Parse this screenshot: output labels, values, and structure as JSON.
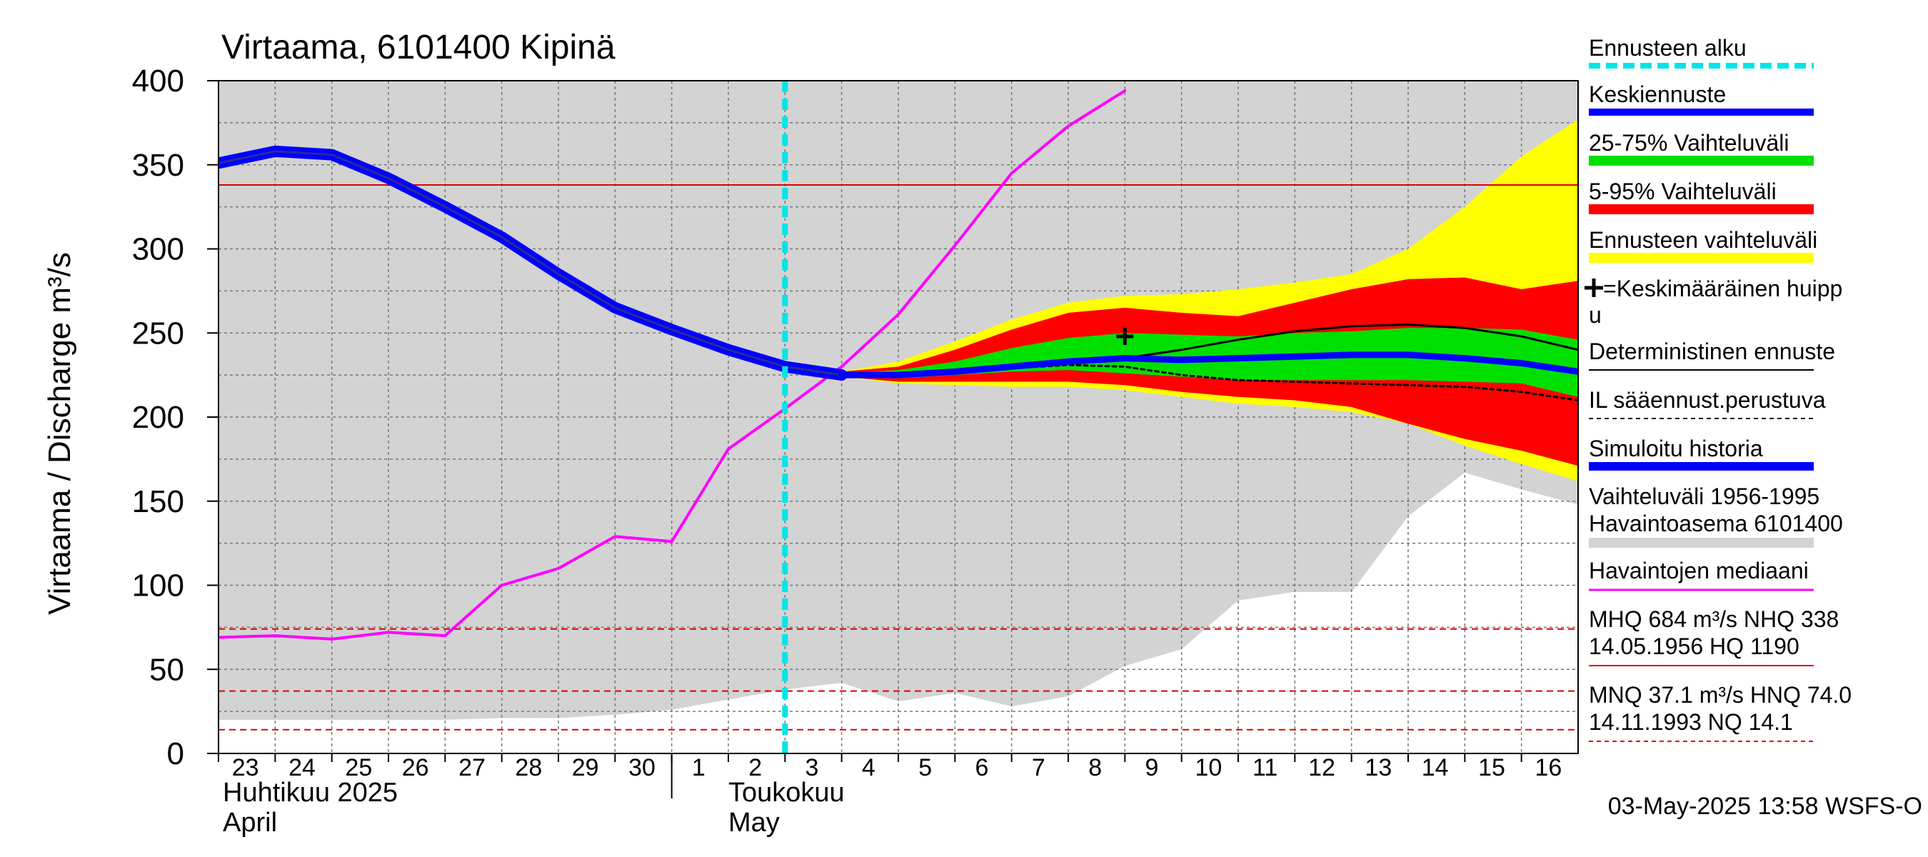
{
  "chart_data": {
    "type": "line",
    "title": "Virtaama, 6101400 Kipinä",
    "ylabel": "Virtaama / Discharge   m³/s",
    "ylim": [
      0,
      400
    ],
    "yticks": [
      0,
      50,
      100,
      150,
      200,
      250,
      300,
      350,
      400
    ],
    "x_start": "2025-04-23",
    "x_end": "2025-05-17",
    "x_tick_labels": [
      "23",
      "24",
      "25",
      "26",
      "27",
      "28",
      "29",
      "30",
      "1",
      "2",
      "3",
      "4",
      "5",
      "6",
      "7",
      "8",
      "9",
      "10",
      "11",
      "12",
      "13",
      "14",
      "15",
      "16"
    ],
    "month_labels": {
      "april_fi": "Huhtikuu  2025",
      "april_en": "April",
      "may_fi": "Toukokuu",
      "may_en": "May"
    },
    "forecast_start": "2025-05-03",
    "reference_lines": [
      {
        "label": "NHQ",
        "value": 338,
        "style": "solid",
        "color": "#e00000"
      },
      {
        "label": "HNQ",
        "value": 74.0,
        "style": "dashed",
        "color": "#e00000"
      },
      {
        "label": "MNQ",
        "value": 37.1,
        "style": "dashed",
        "color": "#e00000"
      },
      {
        "label": "NQ",
        "value": 14.1,
        "style": "dashed",
        "color": "#e00000"
      }
    ],
    "x": [
      "2025-04-23",
      "2025-04-24",
      "2025-04-25",
      "2025-04-26",
      "2025-04-27",
      "2025-04-28",
      "2025-04-29",
      "2025-04-30",
      "2025-05-01",
      "2025-05-02",
      "2025-05-03",
      "2025-05-04",
      "2025-05-05",
      "2025-05-06",
      "2025-05-07",
      "2025-05-08",
      "2025-05-09",
      "2025-05-10",
      "2025-05-11",
      "2025-05-12",
      "2025-05-13",
      "2025-05-14",
      "2025-05-15",
      "2025-05-16",
      "2025-05-17"
    ],
    "historical_range": {
      "upper": [
        400,
        400,
        400,
        400,
        400,
        400,
        400,
        400,
        400,
        400,
        400,
        400,
        400,
        400,
        400,
        400,
        400,
        400,
        400,
        400,
        400,
        400,
        400,
        400,
        400
      ],
      "lower": [
        20,
        20,
        20,
        20,
        20,
        21,
        21,
        23,
        26,
        32,
        38,
        42,
        31,
        36,
        28,
        34,
        52,
        62,
        91,
        96,
        96,
        141,
        167,
        157,
        148
      ]
    },
    "simulated_history": {
      "x": [
        "2025-04-23",
        "2025-04-24",
        "2025-04-25",
        "2025-04-26",
        "2025-04-27",
        "2025-04-28",
        "2025-04-29",
        "2025-04-30",
        "2025-05-01",
        "2025-05-02",
        "2025-05-03",
        "2025-05-04"
      ],
      "values": [
        351,
        358,
        356,
        342,
        325,
        307,
        285,
        265,
        252,
        240,
        230,
        225
      ]
    },
    "observed_median": {
      "x": [
        "2025-04-23",
        "2025-04-24",
        "2025-04-25",
        "2025-04-26",
        "2025-04-27",
        "2025-04-28",
        "2025-04-29",
        "2025-04-30",
        "2025-05-01",
        "2025-05-02",
        "2025-05-03",
        "2025-05-04",
        "2025-05-05",
        "2025-05-06",
        "2025-05-07",
        "2025-05-08",
        "2025-05-09"
      ],
      "values": [
        69,
        70,
        68,
        72,
        70,
        100,
        110,
        129,
        126,
        181,
        205,
        230,
        261,
        302,
        345,
        373,
        394
      ]
    },
    "forecast_x": [
      "2025-05-04",
      "2025-05-05",
      "2025-05-06",
      "2025-05-07",
      "2025-05-08",
      "2025-05-09",
      "2025-05-10",
      "2025-05-11",
      "2025-05-12",
      "2025-05-13",
      "2025-05-14",
      "2025-05-15",
      "2025-05-16",
      "2025-05-17"
    ],
    "forecast_range": {
      "upper": [
        227,
        233,
        245,
        258,
        268,
        272,
        273,
        276,
        280,
        285,
        300,
        325,
        355,
        377
      ],
      "lower": [
        224,
        220,
        219,
        218,
        218,
        216,
        212,
        208,
        206,
        203,
        196,
        183,
        172,
        162
      ]
    },
    "p5_95": {
      "upper": [
        227,
        230,
        240,
        252,
        262,
        265,
        262,
        260,
        268,
        276,
        282,
        283,
        276,
        281
      ],
      "lower": [
        224,
        221,
        221,
        221,
        221,
        219,
        215,
        212,
        210,
        206,
        196,
        187,
        180,
        171
      ]
    },
    "p25_75": {
      "upper": [
        226,
        228,
        233,
        241,
        247,
        250,
        249,
        248,
        250,
        251,
        253,
        253,
        252,
        246
      ],
      "lower": [
        225,
        223,
        225,
        227,
        228,
        226,
        224,
        222,
        222,
        222,
        222,
        221,
        220,
        212
      ]
    },
    "mean_forecast": [
      225,
      225,
      227,
      230,
      233,
      235,
      234,
      235,
      236,
      237,
      237,
      235,
      232,
      227
    ],
    "deterministic_forecast": [
      225,
      224,
      226,
      230,
      233,
      235,
      240,
      246,
      251,
      254,
      255,
      253,
      248,
      240
    ],
    "il_forecast": [
      225,
      224,
      226,
      229,
      231,
      230,
      225,
      222,
      221,
      220,
      219,
      218,
      215,
      210
    ],
    "mean_peak": {
      "x": "2025-05-09",
      "value": 248
    },
    "legend": {
      "forecast_start": "Ennusteen alku",
      "mean_forecast": "Keskiennuste",
      "p25_75": "25-75% Vaihteluväli",
      "p5_95": "5-95% Vaihteluväli",
      "forecast_range": "Ennusteen vaihteluväli",
      "mean_peak_line1": "=Keskimääräinen huipp",
      "mean_peak_line2": "u",
      "deterministic": "Deterministinen ennuste",
      "il": "IL sääennust.perustuva",
      "simulated": "Simuloitu historia",
      "range_line1": "Vaihteluväli 1956-1995",
      "range_line2": " Havaintoasema 6101400",
      "median": "Havaintojen mediaani",
      "mhq_line1": "MHQ  684 m³/s NHQ  338",
      "mhq_line2": "14.05.1956 HQ 1190",
      "mnq_line1": "MNQ 37.1 m³/s HNQ 74.0",
      "mnq_line2": "14.11.1993 NQ 14.1"
    },
    "colors": {
      "historical_range": "#d3d3d3",
      "forecast_range": "#ffff00",
      "p5_95": "#ff0000",
      "p25_75": "#00e000",
      "mean_forecast": "#0000ff",
      "simulated": "#0000ff",
      "median": "#ff00ff",
      "forecast_start": "#00e5e5",
      "reference": "#e00000",
      "deterministic": "#000000"
    },
    "timestamp": "03-May-2025 13:58 WSFS-O"
  }
}
